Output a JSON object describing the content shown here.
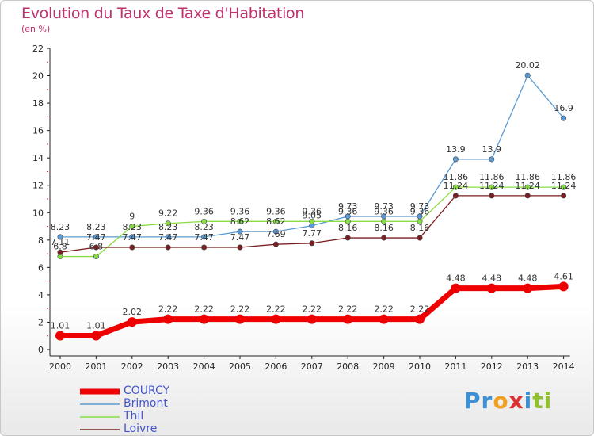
{
  "chart_data": {
    "type": "line",
    "title": "Evolution du Taux de Taxe d'Habitation",
    "unit_label": "(en %)",
    "categories": [
      "2000",
      "2001",
      "2002",
      "2003",
      "2004",
      "2005",
      "2006",
      "2007",
      "2008",
      "2009",
      "2010",
      "2011",
      "2012",
      "2013",
      "2014"
    ],
    "ylim": [
      0,
      22
    ],
    "yticks": [
      0,
      2,
      4,
      6,
      8,
      10,
      12,
      14,
      16,
      18,
      20,
      22
    ],
    "grid": "none",
    "legend_position": "bottom-left",
    "series": [
      {
        "name": "COURCY",
        "color": "#ee0000",
        "width": 7,
        "values": [
          1.01,
          1.01,
          2.02,
          2.22,
          2.22,
          2.22,
          2.22,
          2.22,
          2.22,
          2.22,
          2.22,
          4.48,
          4.48,
          4.48,
          4.61
        ],
        "labels": [
          "1.01",
          "1.01",
          "2.02",
          "2.22",
          "2.22",
          "2.22",
          "2.22",
          "2.22",
          "2.22",
          "2.22",
          "2.22",
          "4.48",
          "4.48",
          "4.48",
          "4.61"
        ]
      },
      {
        "name": "Brimont",
        "color": "#5a9bd4",
        "width": 1.3,
        "values": [
          8.23,
          8.23,
          8.23,
          8.23,
          8.23,
          8.62,
          8.62,
          9.05,
          9.73,
          9.73,
          9.73,
          13.9,
          13.9,
          20.02,
          16.9
        ],
        "labels": [
          "8.23",
          "8.23",
          "8.23",
          "8.23",
          "8.23",
          "8.62",
          "8.62",
          "9.05",
          "9.73",
          "9.73",
          "9.73",
          "13.9",
          "13.9",
          "20.02",
          "16.9"
        ]
      },
      {
        "name": "Thil",
        "color": "#88dd44",
        "width": 1.3,
        "values": [
          6.8,
          6.8,
          9,
          9.22,
          9.36,
          9.36,
          9.36,
          9.36,
          9.36,
          9.36,
          9.36,
          11.86,
          11.86,
          11.86,
          11.86
        ],
        "labels": [
          "6.8",
          "6.8",
          "9",
          "9.22",
          "9.36",
          "9.36",
          "9.36",
          "9.36",
          "9.36",
          "9.36",
          "9.36",
          "11.86",
          "11.86",
          "11.86",
          "11.86"
        ]
      },
      {
        "name": "Loivre",
        "color": "#7a1f1f",
        "width": 1.3,
        "values": [
          7.11,
          7.47,
          7.47,
          7.47,
          7.47,
          7.47,
          7.69,
          7.77,
          8.16,
          8.16,
          8.16,
          11.24,
          11.24,
          11.24,
          11.24
        ],
        "labels": [
          "7.11",
          "7.47",
          "7.47",
          "7.47",
          "7.47",
          "7.47",
          "7.69",
          "7.77",
          "8.16",
          "8.16",
          "8.16",
          "11.24",
          "11.24",
          "11.24",
          "11.24"
        ]
      }
    ]
  },
  "legend": {
    "items": [
      {
        "label": "COURCY",
        "color": "#ee0000",
        "text_color": "#4455cc"
      },
      {
        "label": "Brimont",
        "color": "#5a9bd4",
        "text_color": "#4455cc"
      },
      {
        "label": "Thil",
        "color": "#88dd44",
        "text_color": "#4455cc"
      },
      {
        "label": "Loivre",
        "color": "#7a1f1f",
        "text_color": "#4455cc"
      }
    ]
  },
  "logo": {
    "letters": [
      "P",
      "r",
      "o",
      "x",
      "i",
      "t",
      "i"
    ],
    "colors": [
      "#3d8fd6",
      "#3d8fd6",
      "#f0a020",
      "#e03030",
      "#3d8fd6",
      "#90c030",
      "#90c030"
    ]
  }
}
